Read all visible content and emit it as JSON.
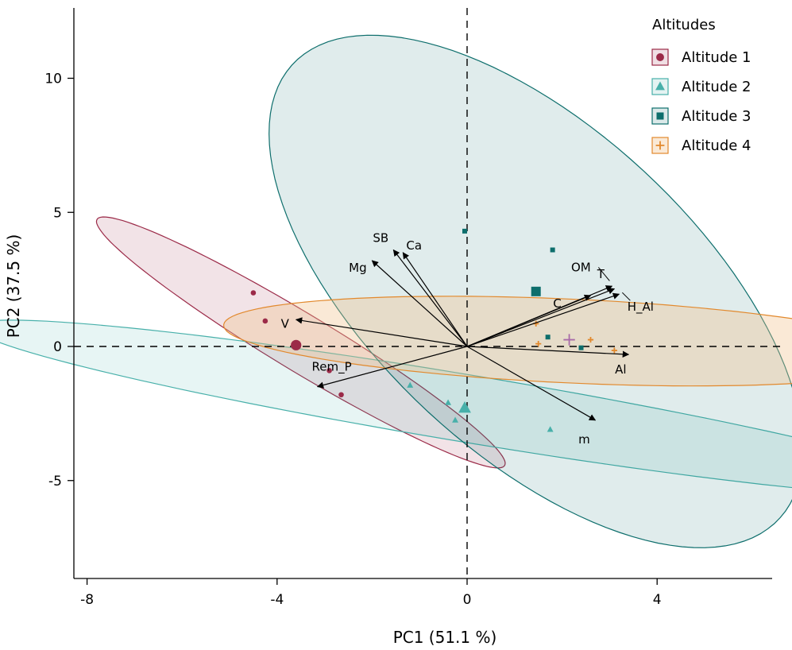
{
  "chart_data": {
    "type": "scatter",
    "xlabel": "PC1 (51.1 %)",
    "ylabel": "PC2 (37.5 %)",
    "xlim": [
      -8.3,
      6.5
    ],
    "ylim": [
      -8.6,
      12.6
    ],
    "xticks": [
      -8,
      -4,
      0,
      4
    ],
    "yticks": [
      -5,
      0,
      5,
      10
    ],
    "xtick_labels": [
      "-8",
      "-4",
      "0",
      "4"
    ],
    "ytick_labels": [
      "-5",
      "0",
      "5",
      "10"
    ],
    "grid": false,
    "reference_lines": {
      "x": 0,
      "y": 0,
      "style": "dashed"
    },
    "legend": {
      "title": "Altitudes",
      "position": "top-right"
    },
    "series": [
      {
        "name": "Altitude 1",
        "marker": "circle",
        "color": "#9b2a48",
        "fill": "#9b2a48",
        "points": [
          [
            -4.5,
            2.0
          ],
          [
            -4.25,
            0.95
          ],
          [
            -2.9,
            -0.9
          ],
          [
            -2.65,
            -1.8
          ]
        ],
        "centroid": [
          -3.6,
          0.05
        ],
        "ellipse": {
          "center": [
            -3.5,
            0.15
          ],
          "semi_axes": [
            6.3,
            0.85
          ],
          "angle_deg": -47.5
        }
      },
      {
        "name": "Altitude 2",
        "marker": "triangle",
        "color": "#48b0aa",
        "fill": "#48b0aa",
        "points": [
          [
            -1.2,
            -1.45
          ],
          [
            -0.4,
            -2.1
          ],
          [
            -0.25,
            -2.75
          ],
          [
            1.75,
            -3.1
          ]
        ],
        "centroid": [
          -0.05,
          -2.3
        ],
        "ellipse": {
          "center": [
            -0.05,
            -2.3
          ],
          "semi_axes": [
            10.8,
            1.22
          ],
          "angle_deg": -16.5
        }
      },
      {
        "name": "Altitude 3",
        "marker": "square",
        "color": "#0d6e6c",
        "fill": "#0d6e6c",
        "points": [
          [
            -0.05,
            4.3
          ],
          [
            1.8,
            3.6
          ],
          [
            1.7,
            0.35
          ],
          [
            2.4,
            -0.05
          ]
        ],
        "centroid": [
          1.45,
          2.05
        ],
        "ellipse": {
          "center": [
            1.45,
            2.05
          ],
          "semi_axes": [
            10.3,
            4.1
          ],
          "angle_deg": -66.0
        }
      },
      {
        "name": "Altitude 4",
        "marker": "plus",
        "color": "#e2892d",
        "fill": "#f0c08a",
        "points": [
          [
            1.45,
            0.85
          ],
          [
            1.5,
            0.1
          ],
          [
            2.6,
            0.25
          ],
          [
            3.1,
            -0.15
          ]
        ],
        "centroid": [
          2.15,
          0.25
        ],
        "ellipse": {
          "center": [
            2.2,
            0.2
          ],
          "semi_axes": [
            7.35,
            1.56
          ],
          "angle_deg": -4.8
        }
      }
    ],
    "loadings": [
      {
        "label": "SB",
        "x": -1.55,
        "y": 3.6
      },
      {
        "label": "Ca",
        "x": -1.35,
        "y": 3.5
      },
      {
        "label": "Mg",
        "x": -2.0,
        "y": 3.2
      },
      {
        "label": "V",
        "x": -3.6,
        "y": 1.0
      },
      {
        "label": "Rem_P",
        "x": -3.15,
        "y": -1.5
      },
      {
        "label": "OM",
        "x": 3.1,
        "y": 2.15
      },
      {
        "label": "T",
        "x": 3.05,
        "y": 2.25
      },
      {
        "label": "C",
        "x": 2.6,
        "y": 1.9
      },
      {
        "label": "H_Al",
        "x": 3.2,
        "y": 1.95
      },
      {
        "label": "Al",
        "x": 3.4,
        "y": -0.3
      },
      {
        "label": "m",
        "x": 2.7,
        "y": -2.75
      }
    ]
  }
}
